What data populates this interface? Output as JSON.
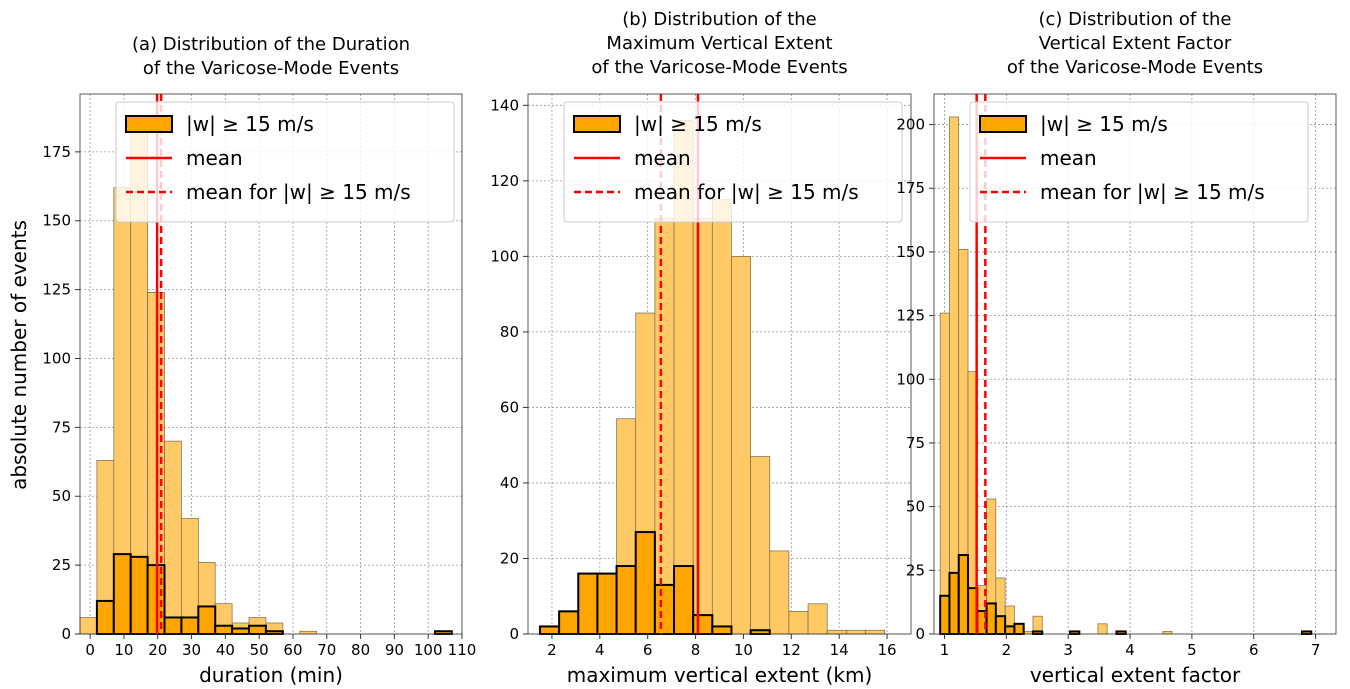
{
  "figure": {
    "shared_ylabel": "absolute number of events"
  },
  "colors": {
    "all_bars_fill": "#ffc966",
    "all_bars_edge": "#7a6a4a",
    "strong_bars_fill": "#ffa500",
    "strong_bars_edge": "#000000",
    "mean_line": "#ff0000",
    "grid": "#999999"
  },
  "chart_data": [
    {
      "type": "bar",
      "title": [
        "(a) Distribution of the Duration",
        "of the Varicose-Mode Events"
      ],
      "xlabel": "duration (min)",
      "ylabel": "absolute number of events",
      "xlim": [
        -3,
        110
      ],
      "ylim": [
        0,
        196
      ],
      "xticks": [
        0,
        10,
        20,
        30,
        40,
        50,
        60,
        70,
        80,
        90,
        100,
        110
      ],
      "yticks": [
        0,
        25,
        50,
        75,
        100,
        125,
        150,
        175
      ],
      "grid": true,
      "legend_position": "top-right",
      "legend": [
        "|w| ≥ 15 m/s",
        "mean",
        "mean for |w| ≥ 15 m/s"
      ],
      "bin_edges": [
        -3,
        2,
        7,
        12,
        17,
        22,
        27,
        32,
        37,
        42,
        47,
        52,
        57,
        62,
        67,
        72,
        77,
        82,
        87,
        92,
        97,
        102,
        107
      ],
      "series": [
        {
          "name": "all events",
          "values": [
            6,
            63,
            162,
            184,
            124,
            70,
            42,
            26,
            11,
            4,
            6,
            4,
            0,
            1,
            0,
            0,
            0,
            0,
            0,
            0,
            0,
            1
          ]
        },
        {
          "name": "|w| ≥ 15 m/s",
          "values": [
            0,
            12,
            29,
            28,
            25,
            6,
            6,
            10,
            3,
            2,
            3,
            1,
            0,
            0,
            0,
            0,
            0,
            0,
            0,
            0,
            0,
            1
          ]
        }
      ],
      "mean": 19.8,
      "mean_strong": 21.0
    },
    {
      "type": "bar",
      "title": [
        "(b) Distribution of the",
        "Maximum Vertical Extent",
        "of the Varicose-Mode Events"
      ],
      "xlabel": "maximum vertical extent (km)",
      "ylabel": "",
      "xlim": [
        1.0,
        17.0
      ],
      "ylim": [
        0,
        143
      ],
      "xticks": [
        2,
        4,
        6,
        8,
        10,
        12,
        14,
        16
      ],
      "yticks": [
        0,
        20,
        40,
        60,
        80,
        100,
        120,
        140
      ],
      "grid": true,
      "legend_position": "top-right",
      "legend": [
        "|w| ≥ 15 m/s",
        "mean",
        "mean for |w| ≥ 15 m/s"
      ],
      "bin_edges": [
        1.5,
        2.3,
        3.1,
        3.9,
        4.7,
        5.5,
        6.3,
        7.1,
        7.9,
        8.7,
        9.5,
        10.3,
        11.1,
        11.9,
        12.7,
        13.5,
        14.3,
        15.1,
        15.9,
        16.7
      ],
      "series": [
        {
          "name": "all events",
          "values": [
            2,
            6,
            16,
            16,
            57,
            85,
            110,
            136,
            110,
            115,
            100,
            47,
            22,
            6,
            8,
            1,
            1,
            1,
            0
          ]
        },
        {
          "name": "|w| ≥ 15 m/s",
          "values": [
            2,
            6,
            16,
            16,
            18,
            27,
            13,
            18,
            5,
            2,
            0,
            1,
            0,
            0,
            0,
            0,
            0,
            0,
            0
          ]
        }
      ],
      "mean": 8.1,
      "mean_strong": 6.55
    },
    {
      "type": "bar",
      "title": [
        "(c) Distribution of the",
        "Vertical Extent Factor",
        "of the Varicose-Mode Events"
      ],
      "xlabel": "vertical extent factor",
      "ylabel": "",
      "xlim": [
        0.83,
        7.33
      ],
      "ylim": [
        0,
        212
      ],
      "xticks": [
        1,
        2,
        3,
        4,
        5,
        6,
        7
      ],
      "yticks": [
        0,
        25,
        50,
        75,
        100,
        125,
        150,
        175,
        200
      ],
      "grid": true,
      "legend_position": "top-right",
      "legend": [
        "|w| ≥ 15 m/s",
        "mean",
        "mean for |w| ≥ 15 m/s"
      ],
      "bin_edges": [
        0.93,
        1.08,
        1.23,
        1.38,
        1.53,
        1.68,
        1.83,
        1.98,
        2.13,
        2.28,
        2.43,
        2.58,
        2.73,
        2.88,
        3.03,
        3.18,
        3.33,
        3.48,
        3.63,
        3.78,
        3.93,
        4.08,
        4.23,
        4.38,
        4.53,
        4.68,
        4.83,
        4.98,
        5.13,
        5.28,
        5.43,
        5.58,
        5.73,
        5.88,
        6.03,
        6.18,
        6.33,
        6.48,
        6.63,
        6.78,
        6.93,
        7.08,
        7.23
      ],
      "series": [
        {
          "name": "all events",
          "values": [
            126,
            203,
            151,
            103,
            19,
            53,
            22,
            11,
            4,
            1,
            7,
            0,
            0,
            0,
            1,
            0,
            0,
            4,
            0,
            1,
            0,
            0,
            0,
            0,
            1,
            0,
            0,
            0,
            0,
            0,
            0,
            0,
            0,
            0,
            0,
            0,
            0,
            0,
            0,
            1,
            0,
            0
          ]
        },
        {
          "name": "|w| ≥ 15 m/s",
          "values": [
            15,
            24,
            31,
            18,
            9,
            12,
            7,
            3,
            4,
            0,
            1,
            0,
            0,
            0,
            1,
            0,
            0,
            0,
            0,
            1,
            0,
            0,
            0,
            0,
            0,
            0,
            0,
            0,
            0,
            0,
            0,
            0,
            0,
            0,
            0,
            0,
            0,
            0,
            0,
            1,
            0,
            0
          ]
        }
      ],
      "mean": 1.52,
      "mean_strong": 1.66
    }
  ]
}
